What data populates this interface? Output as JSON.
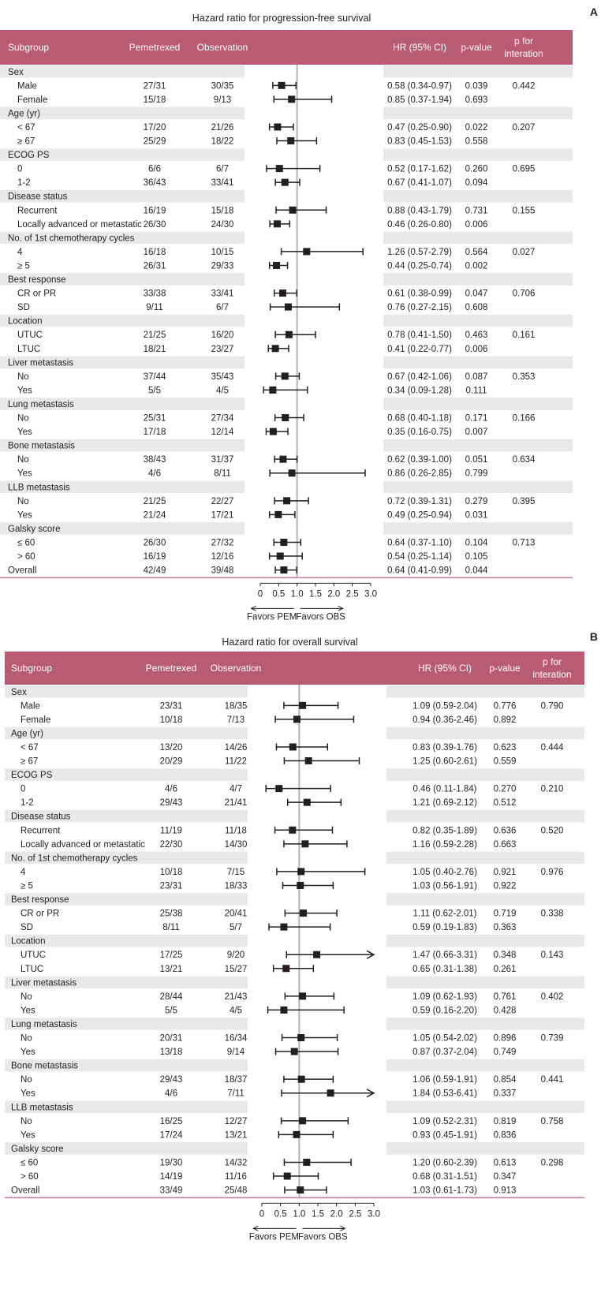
{
  "colors": {
    "header_bg": "#b85c74",
    "band": "#e9e9e9",
    "rule": "#c97a8c",
    "mark": "#231f20",
    "ref_line": "#b3b3b3"
  },
  "chart_data": [
    {
      "type": "forest",
      "panel_label": "A",
      "title": "Hazard ratio for progression-free survival",
      "columns": {
        "subgroup": "Subgroup",
        "pem": "Pemetrexed",
        "obs": "Observation",
        "hr": "HR (95% CI)",
        "p": "p-value",
        "pint1": "p for",
        "pint2": "interation"
      },
      "axis": {
        "xlim": [
          0,
          3.0
        ],
        "ticks": [
          "0",
          "0.5",
          "1.0",
          "1.5",
          "2.0",
          "2.5",
          "3.0"
        ],
        "tick_values": [
          0,
          0.5,
          1.0,
          1.5,
          2.0,
          2.5,
          3.0
        ],
        "reference": 1.0,
        "favors_left": "Favors PEM",
        "favors_right": "Favors OBS"
      },
      "rows": [
        {
          "kind": "header",
          "label": "Sex"
        },
        {
          "kind": "data",
          "label": "Male",
          "pem": "27/31",
          "obs": "30/35",
          "hr": 0.58,
          "lo": 0.34,
          "hi": 0.97,
          "hr_text": "0.58 (0.34-0.97)",
          "p": "0.039",
          "pint": "0.442"
        },
        {
          "kind": "data",
          "label": "Female",
          "pem": "15/18",
          "obs": "9/13",
          "hr": 0.85,
          "lo": 0.37,
          "hi": 1.94,
          "hr_text": "0.85 (0.37-1.94)",
          "p": "0.693",
          "pint": ""
        },
        {
          "kind": "header",
          "label": "Age (yr)"
        },
        {
          "kind": "data",
          "label": "< 67",
          "pem": "17/20",
          "obs": "21/26",
          "hr": 0.47,
          "lo": 0.25,
          "hi": 0.9,
          "hr_text": "0.47 (0.25-0.90)",
          "p": "0.022",
          "pint": "0.207"
        },
        {
          "kind": "data",
          "label": "≥ 67",
          "pem": "25/29",
          "obs": "18/22",
          "hr": 0.83,
          "lo": 0.45,
          "hi": 1.53,
          "hr_text": "0.83 (0.45-1.53)",
          "p": "0.558",
          "pint": ""
        },
        {
          "kind": "header",
          "label": "ECOG PS"
        },
        {
          "kind": "data",
          "label": "0",
          "pem": "6/6",
          "obs": "6/7",
          "hr": 0.52,
          "lo": 0.17,
          "hi": 1.62,
          "hr_text": "0.52 (0.17-1.62)",
          "p": "0.260",
          "pint": "0.695"
        },
        {
          "kind": "data",
          "label": "1-2",
          "pem": "36/43",
          "obs": "33/41",
          "hr": 0.67,
          "lo": 0.41,
          "hi": 1.07,
          "hr_text": "0.67 (0.41-1.07)",
          "p": "0.094",
          "pint": ""
        },
        {
          "kind": "header",
          "label": "Disease status"
        },
        {
          "kind": "data",
          "label": "Recurrent",
          "pem": "16/19",
          "obs": "15/18",
          "hr": 0.88,
          "lo": 0.43,
          "hi": 1.79,
          "hr_text": "0.88 (0.43-1.79)",
          "p": "0.731",
          "pint": "0.155"
        },
        {
          "kind": "data",
          "label": "Locally advanced or metastatic",
          "pem": "26/30",
          "obs": "24/30",
          "hr": 0.46,
          "lo": 0.26,
          "hi": 0.8,
          "hr_text": "0.46 (0.26-0.80)",
          "p": "0.006",
          "pint": ""
        },
        {
          "kind": "header",
          "label": "No. of 1st chemotherapy cycles"
        },
        {
          "kind": "data",
          "label": "4",
          "pem": "16/18",
          "obs": "10/15",
          "hr": 1.26,
          "lo": 0.57,
          "hi": 2.79,
          "hr_text": "1.26 (0.57-2.79)",
          "p": "0.564",
          "pint": "0.027"
        },
        {
          "kind": "data",
          "label": "≥ 5",
          "pem": "26/31",
          "obs": "29/33",
          "hr": 0.44,
          "lo": 0.25,
          "hi": 0.74,
          "hr_text": "0.44 (0.25-0.74)",
          "p": "0.002",
          "pint": ""
        },
        {
          "kind": "header",
          "label": "Best response"
        },
        {
          "kind": "data",
          "label": "CR or PR",
          "pem": "33/38",
          "obs": "33/41",
          "hr": 0.61,
          "lo": 0.38,
          "hi": 0.99,
          "hr_text": "0.61 (0.38-0.99)",
          "p": "0.047",
          "pint": "0.706"
        },
        {
          "kind": "data",
          "label": "SD",
          "pem": "9/11",
          "obs": "6/7",
          "hr": 0.76,
          "lo": 0.27,
          "hi": 2.15,
          "hr_text": "0.76 (0.27-2.15)",
          "p": "0.608",
          "pint": ""
        },
        {
          "kind": "header",
          "label": "Location"
        },
        {
          "kind": "data",
          "label": "UTUC",
          "pem": "21/25",
          "obs": "16/20",
          "hr": 0.78,
          "lo": 0.41,
          "hi": 1.5,
          "hr_text": "0.78 (0.41-1.50)",
          "p": "0.463",
          "pint": "0.161"
        },
        {
          "kind": "data",
          "label": "LTUC",
          "pem": "18/21",
          "obs": "23/27",
          "hr": 0.41,
          "lo": 0.22,
          "hi": 0.77,
          "hr_text": "0.41 (0.22-0.77)",
          "p": "0.006",
          "pint": ""
        },
        {
          "kind": "header",
          "label": "Liver metastasis"
        },
        {
          "kind": "data",
          "label": "No",
          "pem": "37/44",
          "obs": "35/43",
          "hr": 0.67,
          "lo": 0.42,
          "hi": 1.06,
          "hr_text": "0.67 (0.42-1.06)",
          "p": "0.087",
          "pint": "0.353"
        },
        {
          "kind": "data",
          "label": "Yes",
          "pem": "5/5",
          "obs": "4/5",
          "hr": 0.34,
          "lo": 0.09,
          "hi": 1.28,
          "hr_text": "0.34 (0.09-1.28)",
          "p": "0.111",
          "pint": ""
        },
        {
          "kind": "header",
          "label": "Lung metastasis"
        },
        {
          "kind": "data",
          "label": "No",
          "pem": "25/31",
          "obs": "27/34",
          "hr": 0.68,
          "lo": 0.4,
          "hi": 1.18,
          "hr_text": "0.68 (0.40-1.18)",
          "p": "0.171",
          "pint": "0.166"
        },
        {
          "kind": "data",
          "label": "Yes",
          "pem": "17/18",
          "obs": "12/14",
          "hr": 0.35,
          "lo": 0.16,
          "hi": 0.75,
          "hr_text": "0.35 (0.16-0.75)",
          "p": "0.007",
          "pint": ""
        },
        {
          "kind": "header",
          "label": "Bone metastasis"
        },
        {
          "kind": "data",
          "label": "No",
          "pem": "38/43",
          "obs": "31/37",
          "hr": 0.62,
          "lo": 0.39,
          "hi": 1.0,
          "hr_text": "0.62 (0.39-1.00)",
          "p": "0.051",
          "pint": "0.634"
        },
        {
          "kind": "data",
          "label": "Yes",
          "pem": "4/6",
          "obs": "8/11",
          "hr": 0.86,
          "lo": 0.26,
          "hi": 2.85,
          "hr_text": "0.86 (0.26-2.85)",
          "p": "0.799",
          "pint": ""
        },
        {
          "kind": "header",
          "label": "LLB metastasis"
        },
        {
          "kind": "data",
          "label": "No",
          "pem": "21/25",
          "obs": "22/27",
          "hr": 0.72,
          "lo": 0.39,
          "hi": 1.31,
          "hr_text": "0.72 (0.39-1.31)",
          "p": "0.279",
          "pint": "0.395"
        },
        {
          "kind": "data",
          "label": "Yes",
          "pem": "21/24",
          "obs": "17/21",
          "hr": 0.49,
          "lo": 0.25,
          "hi": 0.94,
          "hr_text": "0.49 (0.25-0.94)",
          "p": "0.031",
          "pint": ""
        },
        {
          "kind": "header",
          "label": "Galsky score"
        },
        {
          "kind": "data",
          "label": "≤ 60",
          "pem": "26/30",
          "obs": "27/32",
          "hr": 0.64,
          "lo": 0.37,
          "hi": 1.1,
          "hr_text": "0.64 (0.37-1.10)",
          "p": "0.104",
          "pint": "0.713"
        },
        {
          "kind": "data",
          "label": "> 60",
          "pem": "16/19",
          "obs": "12/16",
          "hr": 0.54,
          "lo": 0.25,
          "hi": 1.14,
          "hr_text": "0.54 (0.25-1.14)",
          "p": "0.105",
          "pint": ""
        },
        {
          "kind": "overall",
          "label": "Overall",
          "pem": "42/49",
          "obs": "39/48",
          "hr": 0.64,
          "lo": 0.41,
          "hi": 0.99,
          "hr_text": "0.64 (0.41-0.99)",
          "p": "0.044",
          "pint": ""
        }
      ]
    },
    {
      "type": "forest",
      "panel_label": "B",
      "title": "Hazard ratio for overall survival",
      "columns": {
        "subgroup": "Subgroup",
        "pem": "Pemetrexed",
        "obs": "Observation",
        "hr": "HR (95% CI)",
        "p": "p-value",
        "pint1": "p for",
        "pint2": "interation"
      },
      "axis": {
        "xlim": [
          0,
          3.0
        ],
        "ticks": [
          "0",
          "0.5",
          "1.0",
          "1.5",
          "2.0",
          "2.5",
          "3.0"
        ],
        "tick_values": [
          0,
          0.5,
          1.0,
          1.5,
          2.0,
          2.5,
          3.0
        ],
        "reference": 1.0,
        "favors_left": "Favors PEM",
        "favors_right": "Favors OBS"
      },
      "rows": [
        {
          "kind": "header",
          "label": "Sex"
        },
        {
          "kind": "data",
          "label": "Male",
          "pem": "23/31",
          "obs": "18/35",
          "hr": 1.09,
          "lo": 0.59,
          "hi": 2.04,
          "hr_text": "1.09 (0.59-2.04)",
          "p": "0.776",
          "pint": "0.790"
        },
        {
          "kind": "data",
          "label": "Female",
          "pem": "10/18",
          "obs": "7/13",
          "hr": 0.94,
          "lo": 0.36,
          "hi": 2.46,
          "hr_text": "0.94 (0.36-2.46)",
          "p": "0.892",
          "pint": ""
        },
        {
          "kind": "header",
          "label": "Age (yr)"
        },
        {
          "kind": "data",
          "label": "< 67",
          "pem": "13/20",
          "obs": "14/26",
          "hr": 0.83,
          "lo": 0.39,
          "hi": 1.76,
          "hr_text": "0.83 (0.39-1.76)",
          "p": "0.623",
          "pint": "0.444"
        },
        {
          "kind": "data",
          "label": "≥ 67",
          "pem": "20/29",
          "obs": "11/22",
          "hr": 1.25,
          "lo": 0.6,
          "hi": 2.61,
          "hr_text": "1.25 (0.60-2.61)",
          "p": "0.559",
          "pint": ""
        },
        {
          "kind": "header",
          "label": "ECOG PS"
        },
        {
          "kind": "data",
          "label": "0",
          "pem": "4/6",
          "obs": "4/7",
          "hr": 0.46,
          "lo": 0.11,
          "hi": 1.84,
          "hr_text": "0.46 (0.11-1.84)",
          "p": "0.270",
          "pint": "0.210"
        },
        {
          "kind": "data",
          "label": "1-2",
          "pem": "29/43",
          "obs": "21/41",
          "hr": 1.21,
          "lo": 0.69,
          "hi": 2.12,
          "hr_text": "1.21 (0.69-2.12)",
          "p": "0.512",
          "pint": ""
        },
        {
          "kind": "header",
          "label": "Disease status"
        },
        {
          "kind": "data",
          "label": "Recurrent",
          "pem": "11/19",
          "obs": "11/18",
          "hr": 0.82,
          "lo": 0.35,
          "hi": 1.89,
          "hr_text": "0.82 (0.35-1.89)",
          "p": "0.636",
          "pint": "0.520"
        },
        {
          "kind": "data",
          "label": "Locally advanced or metastatic",
          "pem": "22/30",
          "obs": "14/30",
          "hr": 1.16,
          "lo": 0.59,
          "hi": 2.28,
          "hr_text": "1.16 (0.59-2.28)",
          "p": "0.663",
          "pint": ""
        },
        {
          "kind": "header",
          "label": "No. of 1st chemotherapy cycles"
        },
        {
          "kind": "data",
          "label": "4",
          "pem": "10/18",
          "obs": "7/15",
          "hr": 1.05,
          "lo": 0.4,
          "hi": 2.76,
          "hr_text": "1.05 (0.40-2.76)",
          "p": "0.921",
          "pint": "0.976"
        },
        {
          "kind": "data",
          "label": "≥ 5",
          "pem": "23/31",
          "obs": "18/33",
          "hr": 1.03,
          "lo": 0.56,
          "hi": 1.91,
          "hr_text": "1.03 (0.56-1.91)",
          "p": "0.922",
          "pint": ""
        },
        {
          "kind": "header",
          "label": "Best response"
        },
        {
          "kind": "data",
          "label": "CR or PR",
          "pem": "25/38",
          "obs": "20/41",
          "hr": 1.11,
          "lo": 0.62,
          "hi": 2.01,
          "hr_text": "1.11 (0.62-2.01)",
          "p": "0.719",
          "pint": "0.338"
        },
        {
          "kind": "data",
          "label": "SD",
          "pem": "8/11",
          "obs": "5/7",
          "hr": 0.59,
          "lo": 0.19,
          "hi": 1.83,
          "hr_text": "0.59 (0.19-1.83)",
          "p": "0.363",
          "pint": ""
        },
        {
          "kind": "header",
          "label": "Location"
        },
        {
          "kind": "data",
          "label": "UTUC",
          "pem": "17/25",
          "obs": "9/20",
          "hr": 1.47,
          "lo": 0.66,
          "hi": 3.31,
          "hr_text": "1.47 (0.66-3.31)",
          "p": "0.348",
          "pint": "0.143"
        },
        {
          "kind": "data",
          "label": "LTUC",
          "pem": "13/21",
          "obs": "15/27",
          "hr": 0.65,
          "lo": 0.31,
          "hi": 1.38,
          "hr_text": "0.65 (0.31-1.38)",
          "p": "0.261",
          "pint": ""
        },
        {
          "kind": "header",
          "label": "Liver metastasis"
        },
        {
          "kind": "data",
          "label": "No",
          "pem": "28/44",
          "obs": "21/43",
          "hr": 1.09,
          "lo": 0.62,
          "hi": 1.93,
          "hr_text": "1.09 (0.62-1.93)",
          "p": "0.761",
          "pint": "0.402"
        },
        {
          "kind": "data",
          "label": "Yes",
          "pem": "5/5",
          "obs": "4/5",
          "hr": 0.59,
          "lo": 0.16,
          "hi": 2.2,
          "hr_text": "0.59 (0.16-2.20)",
          "p": "0.428",
          "pint": ""
        },
        {
          "kind": "header",
          "label": "Lung metastasis"
        },
        {
          "kind": "data",
          "label": "No",
          "pem": "20/31",
          "obs": "16/34",
          "hr": 1.05,
          "lo": 0.54,
          "hi": 2.02,
          "hr_text": "1.05 (0.54-2.02)",
          "p": "0.896",
          "pint": "0.739"
        },
        {
          "kind": "data",
          "label": "Yes",
          "pem": "13/18",
          "obs": "9/14",
          "hr": 0.87,
          "lo": 0.37,
          "hi": 2.04,
          "hr_text": "0.87 (0.37-2.04)",
          "p": "0.749",
          "pint": ""
        },
        {
          "kind": "header",
          "label": "Bone metastasis"
        },
        {
          "kind": "data",
          "label": "No",
          "pem": "29/43",
          "obs": "18/37",
          "hr": 1.06,
          "lo": 0.59,
          "hi": 1.91,
          "hr_text": "1.06 (0.59-1.91)",
          "p": "0.854",
          "pint": "0.441"
        },
        {
          "kind": "data",
          "label": "Yes",
          "pem": "4/6",
          "obs": "7/11",
          "hr": 1.84,
          "lo": 0.53,
          "hi": 6.41,
          "hr_text": "1.84 (0.53-6.41)",
          "p": "0.337",
          "pint": ""
        },
        {
          "kind": "header",
          "label": "LLB metastasis"
        },
        {
          "kind": "data",
          "label": "No",
          "pem": "16/25",
          "obs": "12/27",
          "hr": 1.09,
          "lo": 0.52,
          "hi": 2.31,
          "hr_text": "1.09 (0.52-2.31)",
          "p": "0.819",
          "pint": "0.758"
        },
        {
          "kind": "data",
          "label": "Yes",
          "pem": "17/24",
          "obs": "13/21",
          "hr": 0.93,
          "lo": 0.45,
          "hi": 1.91,
          "hr_text": "0.93 (0.45-1.91)",
          "p": "0.836",
          "pint": ""
        },
        {
          "kind": "header",
          "label": "Galsky score"
        },
        {
          "kind": "data",
          "label": "≤ 60",
          "pem": "19/30",
          "obs": "14/32",
          "hr": 1.2,
          "lo": 0.6,
          "hi": 2.39,
          "hr_text": "1.20 (0.60-2.39)",
          "p": "0.613",
          "pint": "0.298"
        },
        {
          "kind": "data",
          "label": "> 60",
          "pem": "14/19",
          "obs": "11/16",
          "hr": 0.68,
          "lo": 0.31,
          "hi": 1.51,
          "hr_text": "0.68 (0.31-1.51)",
          "p": "0.347",
          "pint": ""
        },
        {
          "kind": "overall",
          "label": "Overall",
          "pem": "33/49",
          "obs": "25/48",
          "hr": 1.03,
          "lo": 0.61,
          "hi": 1.73,
          "hr_text": "1.03 (0.61-1.73)",
          "p": "0.913",
          "pint": ""
        }
      ]
    }
  ]
}
